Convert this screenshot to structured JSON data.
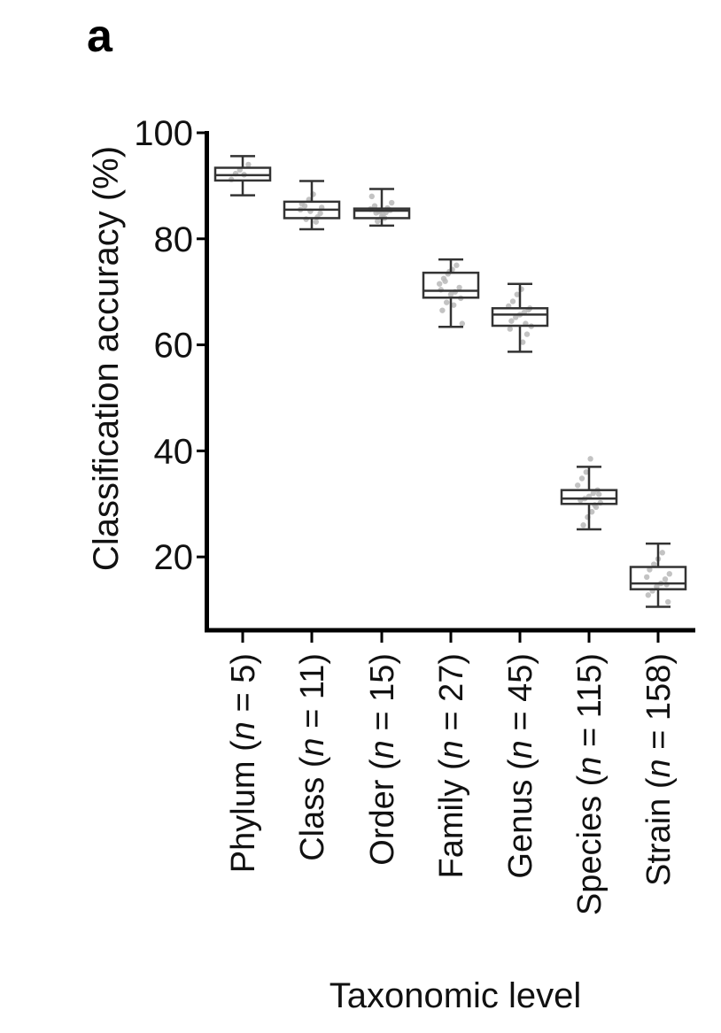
{
  "panel_label": "a",
  "chart_data": {
    "type": "box",
    "title": "",
    "ylabel": "Classification accuracy (%)",
    "xlabel": "Taxonomic level",
    "ylim": [
      6,
      100
    ],
    "yticks": [
      20,
      40,
      60,
      80,
      100
    ],
    "categories": [
      {
        "name": "Phylum",
        "n_prefix": "(",
        "n_var": "n",
        "n_suffix": " = 5)"
      },
      {
        "name": "Class",
        "n_prefix": "(",
        "n_var": "n",
        "n_suffix": " = 11)"
      },
      {
        "name": "Order",
        "n_prefix": "(",
        "n_var": "n",
        "n_suffix": " = 15)"
      },
      {
        "name": "Family",
        "n_prefix": "(",
        "n_var": "n",
        "n_suffix": " = 27)"
      },
      {
        "name": "Genus",
        "n_prefix": "(",
        "n_var": "n",
        "n_suffix": " = 45)"
      },
      {
        "name": "Species",
        "n_prefix": "(",
        "n_var": "n",
        "n_suffix": " = 115)"
      },
      {
        "name": "Strain",
        "n_prefix": "(",
        "n_var": "n",
        "n_suffix": " = 158)"
      }
    ],
    "boxes": [
      {
        "whisker_low": 88.2,
        "q1": 91.0,
        "median": 92.0,
        "q3": 93.4,
        "whisker_high": 95.6
      },
      {
        "whisker_low": 81.8,
        "q1": 83.9,
        "median": 85.5,
        "q3": 87.0,
        "whisker_high": 90.9
      },
      {
        "whisker_low": 82.5,
        "q1": 83.9,
        "median": 85.3,
        "q3": 85.7,
        "whisker_high": 89.4
      },
      {
        "whisker_low": 63.4,
        "q1": 68.9,
        "median": 70.2,
        "q3": 73.6,
        "whisker_high": 76.1
      },
      {
        "whisker_low": 58.7,
        "q1": 63.6,
        "median": 65.7,
        "q3": 66.9,
        "whisker_high": 71.5
      },
      {
        "whisker_low": 25.2,
        "q1": 30.0,
        "median": 31.0,
        "q3": 32.6,
        "whisker_high": 37.0
      },
      {
        "whisker_low": 10.6,
        "q1": 13.9,
        "median": 15.0,
        "q3": 18.1,
        "whisker_high": 22.5
      }
    ],
    "points": [
      [
        91.2,
        92.3,
        93.0,
        92.1,
        94.0
      ],
      [
        83.2,
        84.8,
        85.5,
        86.2,
        87.4,
        88.4,
        84.1,
        85.9,
        86.6,
        83.7,
        85.2
      ],
      [
        83.3,
        84.2,
        85.0,
        85.4,
        85.6,
        86.2,
        85.1,
        84.6,
        85.8,
        86.8,
        88.0,
        84.9,
        85.3,
        83.9,
        85.5
      ],
      [
        64.0,
        66.5,
        68.0,
        69.5,
        70.0,
        70.8,
        71.5,
        72.5,
        73.4,
        74.2,
        75.0,
        68.8,
        70.4,
        72.0,
        73.8,
        67.5
      ],
      [
        60.5,
        62.0,
        63.5,
        64.5,
        65.2,
        65.7,
        66.1,
        66.6,
        67.3,
        68.2,
        69.5,
        70.5,
        64.0,
        66.9,
        63.0
      ],
      [
        26.0,
        27.5,
        28.5,
        29.4,
        30.2,
        30.7,
        31.0,
        31.4,
        32.0,
        32.6,
        33.5,
        34.8,
        36.0,
        38.5,
        29.8,
        31.8
      ],
      [
        11.5,
        12.8,
        13.6,
        14.4,
        15.0,
        15.8,
        16.8,
        17.6,
        18.6,
        19.6,
        20.8,
        14.8,
        16.2
      ]
    ]
  }
}
